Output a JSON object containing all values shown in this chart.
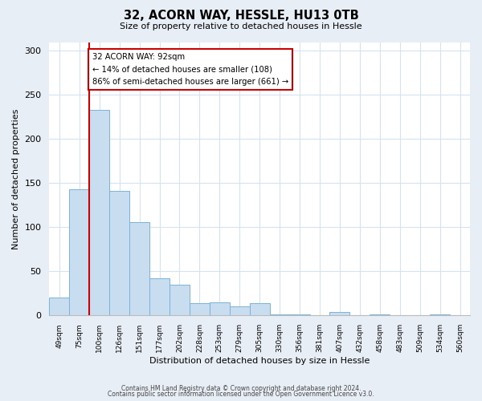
{
  "title": "32, ACORN WAY, HESSLE, HU13 0TB",
  "subtitle": "Size of property relative to detached houses in Hessle",
  "xlabel": "Distribution of detached houses by size in Hessle",
  "ylabel": "Number of detached properties",
  "footer_line1": "Contains HM Land Registry data © Crown copyright and database right 2024.",
  "footer_line2": "Contains public sector information licensed under the Open Government Licence v3.0.",
  "bin_labels": [
    "49sqm",
    "75sqm",
    "100sqm",
    "126sqm",
    "151sqm",
    "177sqm",
    "202sqm",
    "228sqm",
    "253sqm",
    "279sqm",
    "305sqm",
    "330sqm",
    "356sqm",
    "381sqm",
    "407sqm",
    "432sqm",
    "458sqm",
    "483sqm",
    "509sqm",
    "534sqm",
    "560sqm"
  ],
  "bar_heights": [
    20,
    143,
    233,
    141,
    106,
    42,
    35,
    14,
    15,
    10,
    14,
    1,
    1,
    0,
    4,
    0,
    1,
    0,
    0,
    1,
    0
  ],
  "bar_color": "#c9ddf0",
  "bar_edge_color": "#7ab3d8",
  "vline_color": "#cc0000",
  "annotation_text": "32 ACORN WAY: 92sqm\n← 14% of detached houses are smaller (108)\n86% of semi-detached houses are larger (661) →",
  "annotation_box_color": "#ffffff",
  "annotation_box_edge": "#cc0000",
  "ylim": [
    0,
    310
  ],
  "yticks": [
    0,
    50,
    100,
    150,
    200,
    250,
    300
  ],
  "grid_color": "#d5e2ef",
  "background_color": "#e8eef5",
  "plot_bg_color": "#ffffff"
}
